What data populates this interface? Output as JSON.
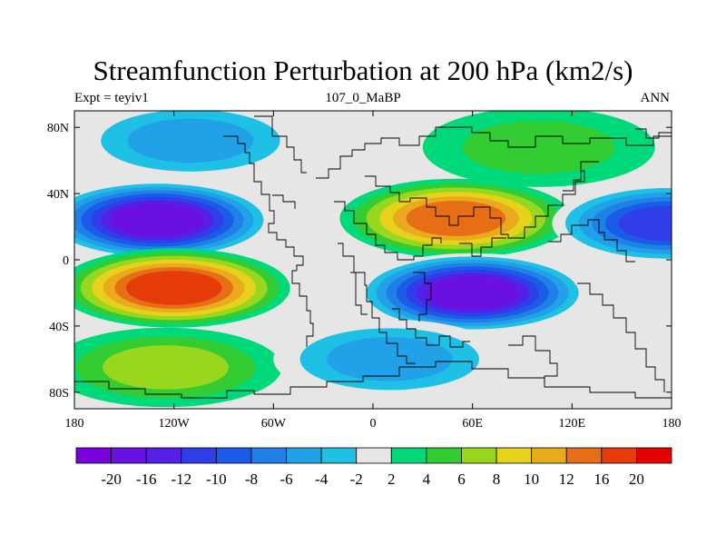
{
  "header": {
    "title": "Streamfunction Perturbation at 200 hPa (km2/s)",
    "left_label": "Expt = teyiv1",
    "center_label": "107_0_MaBP",
    "right_label": "ANN"
  },
  "chart_data": {
    "type": "heatmap",
    "title": "Streamfunction Perturbation at 200 hPa (km2/s)",
    "units": "km2/s",
    "x_range": [
      -180,
      180
    ],
    "y_range": [
      -90,
      90
    ],
    "x_ticks": [
      {
        "value": -180,
        "label": "180"
      },
      {
        "value": -120,
        "label": "120W"
      },
      {
        "value": -60,
        "label": "60W"
      },
      {
        "value": 0,
        "label": "0"
      },
      {
        "value": 60,
        "label": "60E"
      },
      {
        "value": 120,
        "label": "120E"
      },
      {
        "value": 180,
        "label": "180"
      }
    ],
    "y_ticks": [
      {
        "value": 80,
        "label": "80N"
      },
      {
        "value": 40,
        "label": "40N"
      },
      {
        "value": 0,
        "label": "0"
      },
      {
        "value": -40,
        "label": "40S"
      },
      {
        "value": -80,
        "label": "80S"
      }
    ],
    "colorbar": {
      "labels": [
        "-20",
        "-16",
        "-12",
        "-10",
        "-8",
        "-6",
        "-4",
        "-2",
        "2",
        "4",
        "6",
        "8",
        "10",
        "12",
        "16",
        "20"
      ],
      "colors": [
        "#7a00dc",
        "#6a10e0",
        "#5520e6",
        "#2f3ee8",
        "#1a5ce8",
        "#1f80e6",
        "#21a2e8",
        "#1fc0e6",
        "#e6e6e6",
        "#00d97a",
        "#33cc33",
        "#99d61e",
        "#e6d21a",
        "#ebaa1e",
        "#e66e14",
        "#e63c0a",
        "#e60000"
      ]
    },
    "features": [
      {
        "name": "north-pacific-low",
        "lon": -130,
        "lat": 24,
        "value": -20
      },
      {
        "name": "south-pacific-high",
        "lon": -120,
        "lat": -17,
        "value": 16
      },
      {
        "name": "africa-asia-high",
        "lon": 50,
        "lat": 25,
        "value": 15
      },
      {
        "name": "indian-ocean-low",
        "lon": 60,
        "lat": -20,
        "value": -20
      },
      {
        "name": "west-pacific-low",
        "lon": 178,
        "lat": 22,
        "value": -13
      },
      {
        "name": "southern-ocean-high",
        "lon": -125,
        "lat": -65,
        "value": 7
      },
      {
        "name": "south-atlantic-low",
        "lon": 10,
        "lat": -60,
        "value": -6
      },
      {
        "name": "arctic-low",
        "lon": -110,
        "lat": 72,
        "value": -6
      },
      {
        "name": "arctic-high",
        "lon": 100,
        "lat": 68,
        "value": 5
      }
    ]
  }
}
